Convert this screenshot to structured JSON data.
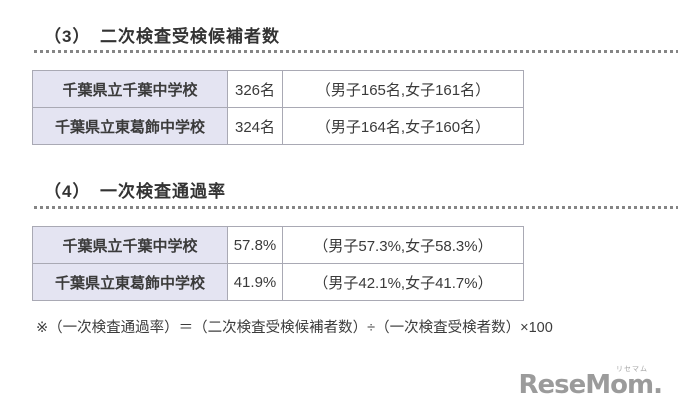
{
  "sections": [
    {
      "heading": "（3）　二次検査受検候補者数",
      "table": {
        "rows": [
          {
            "school": "千葉県立千葉中学校",
            "value": "326名",
            "detail": "（男子165名,女子161名）"
          },
          {
            "school": "千葉県立東葛飾中学校",
            "value": "324名",
            "detail": "（男子164名,女子160名）"
          }
        ]
      }
    },
    {
      "heading": "（4）　一次検査通過率",
      "table": {
        "rows": [
          {
            "school": "千葉県立千葉中学校",
            "value": "57.8%",
            "detail": "（男子57.3%,女子58.3%）"
          },
          {
            "school": "千葉県立東葛飾中学校",
            "value": "41.9%",
            "detail": "（男子42.1%,女子41.7%）"
          }
        ]
      }
    }
  ],
  "footnote": "※（一次検査通過率）＝（二次検査受検候補者数）÷（一次検査受検者数）×100",
  "logo": {
    "text": "ReseMom.",
    "ruby": "リセマム"
  },
  "colors": {
    "header_cell_background": "#e4e4f2",
    "table_border": "#a9a9b4",
    "dotted_line": "#858585",
    "heading_text": "#333333",
    "logo_gray": "#9b9b9b"
  }
}
